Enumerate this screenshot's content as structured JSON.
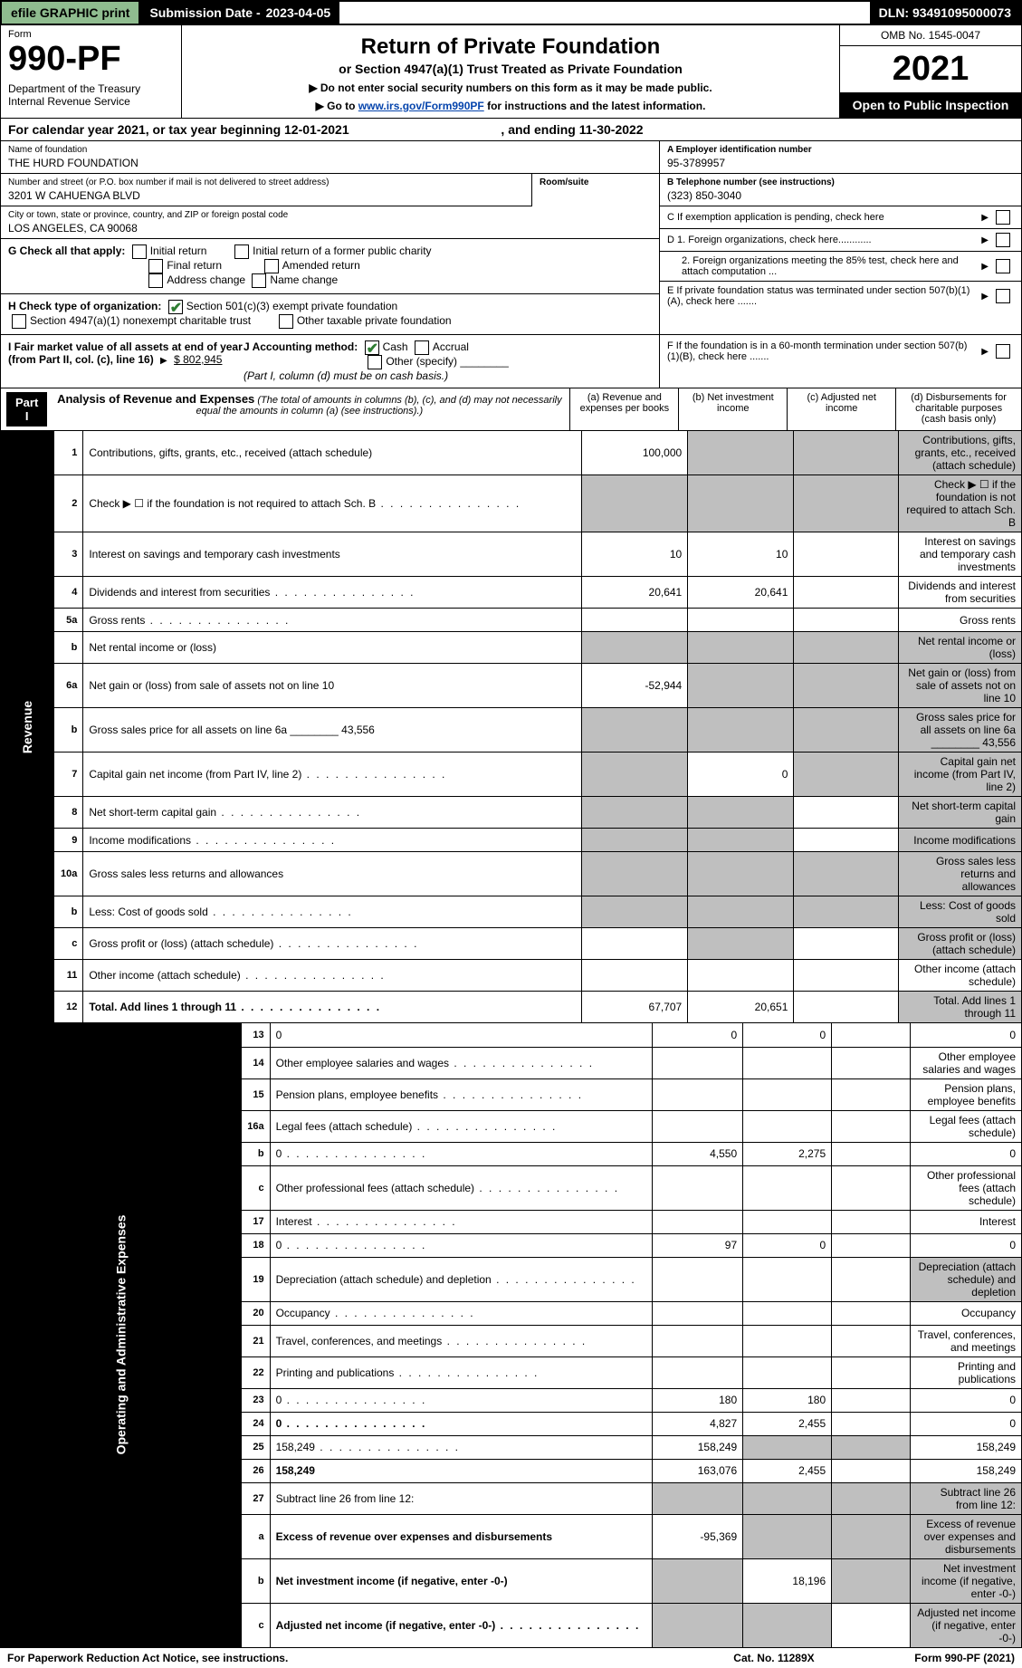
{
  "topbar": {
    "efile": "efile GRAPHIC print",
    "sub_lbl": "Submission Date - ",
    "sub_date": "2023-04-05",
    "dln": "DLN: 93491095000073"
  },
  "hdr": {
    "form": "Form",
    "num": "990-PF",
    "dept": "Department of the Treasury\nInternal Revenue Service",
    "title": "Return of Private Foundation",
    "sub": "or Section 4947(a)(1) Trust Treated as Private Foundation",
    "note1": "▶ Do not enter social security numbers on this form as it may be made public.",
    "note2_pre": "▶ Go to ",
    "note2_link": "www.irs.gov/Form990PF",
    "note2_post": " for instructions and the latest information.",
    "omb": "OMB No. 1545-0047",
    "year": "2021",
    "open": "Open to Public Inspection"
  },
  "cal": {
    "text": "For calendar year 2021, or tax year beginning 12-01-2021",
    "end": ", and ending 11-30-2022"
  },
  "info": {
    "name_lbl": "Name of foundation",
    "name": "THE HURD FOUNDATION",
    "addr_lbl": "Number and street (or P.O. box number if mail is not delivered to street address)",
    "addr": "3201 W CAHUENGA BLVD",
    "room_lbl": "Room/suite",
    "city_lbl": "City or town, state or province, country, and ZIP or foreign postal code",
    "city": "LOS ANGELES, CA  90068",
    "A_lbl": "A Employer identification number",
    "A": "95-3789957",
    "B_lbl": "B Telephone number (see instructions)",
    "B": "(323) 850-3040",
    "C": "C If exemption application is pending, check here",
    "D1": "D 1. Foreign organizations, check here............",
    "D2": "2. Foreign organizations meeting the 85% test, check here and attach computation ...",
    "E": "E If private foundation status was terminated under section 507(b)(1)(A), check here .......",
    "F": "F If the foundation is in a 60-month termination under section 507(b)(1)(B), check here .......",
    "G": "G Check all that apply:",
    "G_opts": [
      "Initial return",
      "Initial return of a former public charity",
      "Final return",
      "Amended return",
      "Address change",
      "Name change"
    ],
    "H": "H Check type of organization:",
    "H1": "Section 501(c)(3) exempt private foundation",
    "H2": "Section 4947(a)(1) nonexempt charitable trust",
    "H3": "Other taxable private foundation",
    "I": "I Fair market value of all assets at end of year (from Part II, col. (c), line 16)",
    "I_val": "$  802,945",
    "J": "J Accounting method:",
    "J_opts": [
      "Cash",
      "Accrual"
    ],
    "J_other": "Other (specify)",
    "J_note": "(Part I, column (d) must be on cash basis.)"
  },
  "part": {
    "label": "Part I",
    "title": "Analysis of Revenue and Expenses",
    "desc": "(The total of amounts in columns (b), (c), and (d) may not necessarily equal the amounts in column (a) (see instructions).)",
    "cols": {
      "a": "(a)   Revenue and expenses per books",
      "b": "(b)   Net investment income",
      "c": "(c)   Adjusted net income",
      "d": "(d)   Disbursements for charitable purposes (cash basis only)"
    }
  },
  "sides": {
    "rev": "Revenue",
    "exp": "Operating and Administrative Expenses"
  },
  "rows": [
    {
      "n": "1",
      "d": "Contributions, gifts, grants, etc., received (attach schedule)",
      "a": "100,000",
      "shade": [
        "b",
        "c",
        "d"
      ]
    },
    {
      "n": "2",
      "d": "Check ▶ ☐ if the foundation is not required to attach Sch. B",
      "dots": true,
      "shade": [
        "a",
        "b",
        "c",
        "d"
      ]
    },
    {
      "n": "3",
      "d": "Interest on savings and temporary cash investments",
      "a": "10",
      "b": "10"
    },
    {
      "n": "4",
      "d": "Dividends and interest from securities",
      "dots": true,
      "a": "20,641",
      "b": "20,641"
    },
    {
      "n": "5a",
      "d": "Gross rents",
      "dots": true
    },
    {
      "n": "b",
      "d": "Net rental income or (loss)",
      "shade": [
        "a",
        "b",
        "c",
        "d"
      ]
    },
    {
      "n": "6a",
      "d": "Net gain or (loss) from sale of assets not on line 10",
      "a": "-52,944",
      "shade": [
        "b",
        "c",
        "d"
      ]
    },
    {
      "n": "b",
      "d": "Gross sales price for all assets on line 6a ________ 43,556",
      "shade": [
        "a",
        "b",
        "c",
        "d"
      ]
    },
    {
      "n": "7",
      "d": "Capital gain net income (from Part IV, line 2)",
      "dots": true,
      "shade": [
        "a"
      ],
      "b": "0",
      "shade2": [
        "c",
        "d"
      ]
    },
    {
      "n": "8",
      "d": "Net short-term capital gain",
      "dots": true,
      "shade": [
        "a",
        "b",
        "d"
      ]
    },
    {
      "n": "9",
      "d": "Income modifications",
      "dots": true,
      "shade": [
        "a",
        "b",
        "d"
      ]
    },
    {
      "n": "10a",
      "d": "Gross sales less returns and allowances",
      "shade": [
        "a",
        "b",
        "c",
        "d"
      ]
    },
    {
      "n": "b",
      "d": "Less: Cost of goods sold",
      "dots": true,
      "shade": [
        "a",
        "b",
        "c",
        "d"
      ]
    },
    {
      "n": "c",
      "d": "Gross profit or (loss) (attach schedule)",
      "dots": true,
      "shade": [
        "b",
        "d"
      ]
    },
    {
      "n": "11",
      "d": "Other income (attach schedule)",
      "dots": true
    },
    {
      "n": "12",
      "d": "Total. Add lines 1 through 11",
      "dots": true,
      "bold": true,
      "a": "67,707",
      "b": "20,651",
      "shade": [
        "d"
      ]
    }
  ],
  "rows2": [
    {
      "n": "13",
      "d": "0",
      "a": "0",
      "b": "0"
    },
    {
      "n": "14",
      "d": "Other employee salaries and wages",
      "dots": true
    },
    {
      "n": "15",
      "d": "Pension plans, employee benefits",
      "dots": true
    },
    {
      "n": "16a",
      "d": "Legal fees (attach schedule)",
      "dots": true
    },
    {
      "n": "b",
      "d": "0",
      "dots": true,
      "a": "4,550",
      "b": "2,275"
    },
    {
      "n": "c",
      "d": "Other professional fees (attach schedule)",
      "dots": true
    },
    {
      "n": "17",
      "d": "Interest",
      "dots": true
    },
    {
      "n": "18",
      "d": "0",
      "dots": true,
      "a": "97",
      "b": "0"
    },
    {
      "n": "19",
      "d": "Depreciation (attach schedule) and depletion",
      "dots": true,
      "shade": [
        "d"
      ]
    },
    {
      "n": "20",
      "d": "Occupancy",
      "dots": true
    },
    {
      "n": "21",
      "d": "Travel, conferences, and meetings",
      "dots": true
    },
    {
      "n": "22",
      "d": "Printing and publications",
      "dots": true
    },
    {
      "n": "23",
      "d": "0",
      "dots": true,
      "a": "180",
      "b": "180"
    },
    {
      "n": "24",
      "d": "0",
      "dots": true,
      "bold": true,
      "a": "4,827",
      "b": "2,455"
    },
    {
      "n": "25",
      "d": "158,249",
      "dots": true,
      "a": "158,249",
      "shade": [
        "b",
        "c"
      ]
    },
    {
      "n": "26",
      "d": "158,249",
      "bold": true,
      "a": "163,076",
      "b": "2,455"
    },
    {
      "n": "27",
      "d": "Subtract line 26 from line 12:",
      "shade": [
        "a",
        "b",
        "c",
        "d"
      ]
    },
    {
      "n": "a",
      "d": "Excess of revenue over expenses and disbursements",
      "bold": true,
      "a": "-95,369",
      "shade": [
        "b",
        "c",
        "d"
      ]
    },
    {
      "n": "b",
      "d": "Net investment income (if negative, enter -0-)",
      "bold": true,
      "shade": [
        "a"
      ],
      "b": "18,196",
      "shade2": [
        "c",
        "d"
      ]
    },
    {
      "n": "c",
      "d": "Adjusted net income (if negative, enter -0-)",
      "dots": true,
      "bold": true,
      "shade": [
        "a",
        "b",
        "d"
      ]
    }
  ],
  "footer": {
    "l": "For Paperwork Reduction Act Notice, see instructions.",
    "m": "Cat. No. 11289X",
    "r": "Form 990-PF (2021)"
  }
}
